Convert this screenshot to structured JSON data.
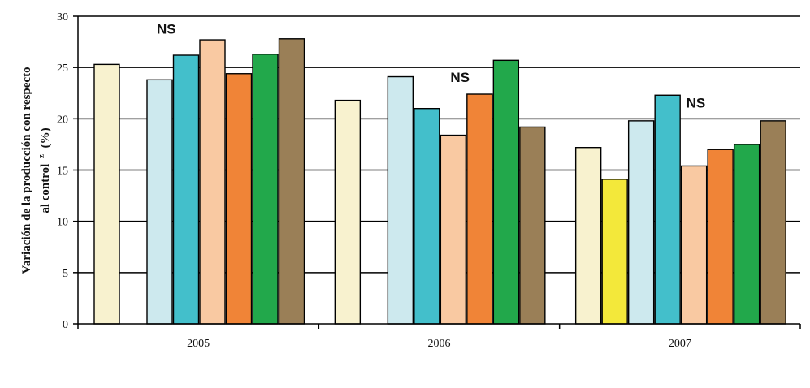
{
  "chart_data": {
    "type": "bar",
    "ylabel_line1": "Variación de la producción con respecto",
    "ylabel_line2": "al control",
    "ylabel_sup": "z",
    "ylabel_unit": "(%)",
    "xlabel": "",
    "ylim": [
      0,
      30
    ],
    "yticks": [
      "0",
      "5",
      "10",
      "15",
      "20",
      "25",
      "30"
    ],
    "grid": true,
    "legend": "none",
    "categories": [
      "2005",
      "2006",
      "2007"
    ],
    "bars_per_group": [
      [
        {
          "value": 25.3,
          "color": "#f8f2cf"
        },
        null,
        {
          "value": 23.8,
          "color": "#cde9ee"
        },
        {
          "value": 26.2,
          "color": "#43bfcb"
        },
        {
          "value": 27.7,
          "color": "#f9c9a2"
        },
        {
          "value": 24.4,
          "color": "#f08437"
        },
        {
          "value": 26.3,
          "color": "#22a84b"
        },
        {
          "value": 27.8,
          "color": "#9a7f57"
        }
      ],
      [
        {
          "value": 21.8,
          "color": "#f8f2cf"
        },
        null,
        {
          "value": 24.1,
          "color": "#cde9ee"
        },
        {
          "value": 21.0,
          "color": "#43bfcb"
        },
        {
          "value": 18.4,
          "color": "#f9c9a2"
        },
        {
          "value": 22.4,
          "color": "#f08437"
        },
        {
          "value": 25.7,
          "color": "#22a84b"
        },
        {
          "value": 19.2,
          "color": "#9a7f57"
        }
      ],
      [
        {
          "value": 17.2,
          "color": "#f8f2cf"
        },
        {
          "value": 14.1,
          "color": "#f3e83a"
        },
        {
          "value": 19.8,
          "color": "#cde9ee"
        },
        {
          "value": 22.3,
          "color": "#43bfcb"
        },
        {
          "value": 15.4,
          "color": "#f9c9a2"
        },
        {
          "value": 17.0,
          "color": "#f08437"
        },
        {
          "value": 17.5,
          "color": "#22a84b"
        },
        {
          "value": 19.8,
          "color": "#9a7f57"
        }
      ]
    ],
    "annotations": [
      {
        "text": "NS",
        "group": 0
      },
      {
        "text": "NS",
        "group": 1
      },
      {
        "text": "NS",
        "group": 2
      }
    ]
  }
}
